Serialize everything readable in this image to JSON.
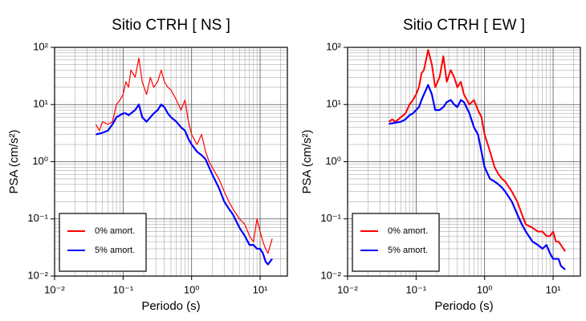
{
  "chart_data": [
    {
      "type": "line",
      "title": "Sitio CTRH [ NS ]",
      "xlabel": "Periodo (s)",
      "ylabel": "PSA (cm/s²)",
      "log_x": true,
      "log_y": true,
      "grid": true,
      "minor_grid": true,
      "legend": "lower left",
      "xlim": [
        0.01,
        25
      ],
      "ylim": [
        0.01,
        100
      ],
      "xticks": [
        {
          "value": 0.01,
          "label": "10⁻²"
        },
        {
          "value": 0.1,
          "label": "10⁻¹"
        },
        {
          "value": 1,
          "label": "10⁰"
        },
        {
          "value": 10,
          "label": "10¹"
        }
      ],
      "yticks": [
        {
          "value": 0.01,
          "label": "10⁻²"
        },
        {
          "value": 0.1,
          "label": "10⁻¹"
        },
        {
          "value": 1,
          "label": "10⁰"
        },
        {
          "value": 10,
          "label": "10¹"
        },
        {
          "value": 100,
          "label": "10²"
        }
      ],
      "x": [
        0.04,
        0.045,
        0.05,
        0.06,
        0.07,
        0.08,
        0.09,
        0.1,
        0.11,
        0.12,
        0.13,
        0.15,
        0.17,
        0.19,
        0.22,
        0.25,
        0.28,
        0.32,
        0.36,
        0.4,
        0.45,
        0.5,
        0.6,
        0.7,
        0.8,
        0.9,
        1,
        1.2,
        1.4,
        1.6,
        1.8,
        2,
        2.5,
        3,
        3.5,
        4,
        5,
        6,
        7,
        8,
        9,
        10,
        11,
        12,
        13,
        15
      ],
      "series": [
        {
          "name": "0% amort.",
          "color": "#ff0000",
          "linewidth": 1.2,
          "values": [
            4.5,
            3.5,
            5,
            4.5,
            5,
            10,
            12,
            15,
            25,
            20,
            40,
            30,
            65,
            25,
            15,
            30,
            20,
            25,
            40,
            25,
            20,
            18,
            12,
            8,
            12,
            5,
            3,
            2,
            3,
            1.5,
            1,
            0.8,
            0.5,
            0.3,
            0.2,
            0.15,
            0.1,
            0.08,
            0.05,
            0.04,
            0.1,
            0.06,
            0.04,
            0.03,
            0.025,
            0.045
          ]
        },
        {
          "name": "5% amort.",
          "color": "#0000ff",
          "linewidth": 2.2,
          "values": [
            3,
            3.1,
            3.2,
            3.5,
            4.5,
            6,
            6.5,
            7,
            7,
            6.5,
            7,
            8,
            10,
            6,
            5,
            6,
            7,
            8,
            10,
            9,
            7,
            6,
            5,
            4,
            3.5,
            2.5,
            2,
            1.5,
            1.3,
            1.1,
            0.8,
            0.6,
            0.35,
            0.2,
            0.15,
            0.12,
            0.07,
            0.05,
            0.035,
            0.035,
            0.03,
            0.03,
            0.025,
            0.018,
            0.016,
            0.02
          ]
        }
      ]
    },
    {
      "type": "line",
      "title": "Sitio CTRH [ EW ]",
      "xlabel": "Periodo (s)",
      "ylabel": "PSA (cm/s²)",
      "log_x": true,
      "log_y": true,
      "grid": true,
      "minor_grid": true,
      "legend": "lower left",
      "xlim": [
        0.01,
        25
      ],
      "ylim": [
        0.01,
        100
      ],
      "xticks": [
        {
          "value": 0.01,
          "label": "10⁻²"
        },
        {
          "value": 0.1,
          "label": "10⁻¹"
        },
        {
          "value": 1,
          "label": "10⁰"
        },
        {
          "value": 10,
          "label": "10¹"
        }
      ],
      "yticks": [
        {
          "value": 0.01,
          "label": "10⁻²"
        },
        {
          "value": 0.1,
          "label": "10⁻¹"
        },
        {
          "value": 1,
          "label": "10⁰"
        },
        {
          "value": 10,
          "label": "10¹"
        },
        {
          "value": 100,
          "label": "10²"
        }
      ],
      "x": [
        0.04,
        0.045,
        0.05,
        0.06,
        0.07,
        0.08,
        0.09,
        0.1,
        0.11,
        0.12,
        0.13,
        0.15,
        0.17,
        0.19,
        0.22,
        0.25,
        0.28,
        0.32,
        0.36,
        0.4,
        0.45,
        0.5,
        0.6,
        0.7,
        0.8,
        0.9,
        1,
        1.2,
        1.4,
        1.6,
        1.8,
        2,
        2.5,
        3,
        3.5,
        4,
        5,
        6,
        7,
        8,
        9,
        10,
        11,
        12,
        13,
        15
      ],
      "series": [
        {
          "name": "0% amort.",
          "color": "#ff0000",
          "linewidth": 2,
          "values": [
            5,
            5.5,
            5,
            6,
            7,
            10,
            12,
            15,
            20,
            35,
            40,
            90,
            50,
            20,
            30,
            70,
            25,
            40,
            30,
            20,
            25,
            15,
            10,
            12,
            8,
            6,
            3,
            1.5,
            0.8,
            0.6,
            0.5,
            0.45,
            0.3,
            0.2,
            0.12,
            0.08,
            0.07,
            0.06,
            0.06,
            0.05,
            0.05,
            0.06,
            0.04,
            0.04,
            0.035,
            0.027
          ]
        },
        {
          "name": "5% amort.",
          "color": "#0000ff",
          "linewidth": 2.2,
          "values": [
            4.6,
            4.7,
            4.8,
            5,
            5.5,
            6.5,
            7,
            8,
            9,
            12,
            15,
            22,
            15,
            8,
            8,
            9,
            11,
            12,
            10,
            9,
            12,
            11,
            7,
            4,
            3,
            1.5,
            0.8,
            0.5,
            0.45,
            0.4,
            0.35,
            0.3,
            0.2,
            0.12,
            0.08,
            0.06,
            0.04,
            0.035,
            0.03,
            0.035,
            0.025,
            0.02,
            0.02,
            0.02,
            0.015,
            0.013
          ]
        }
      ]
    }
  ]
}
